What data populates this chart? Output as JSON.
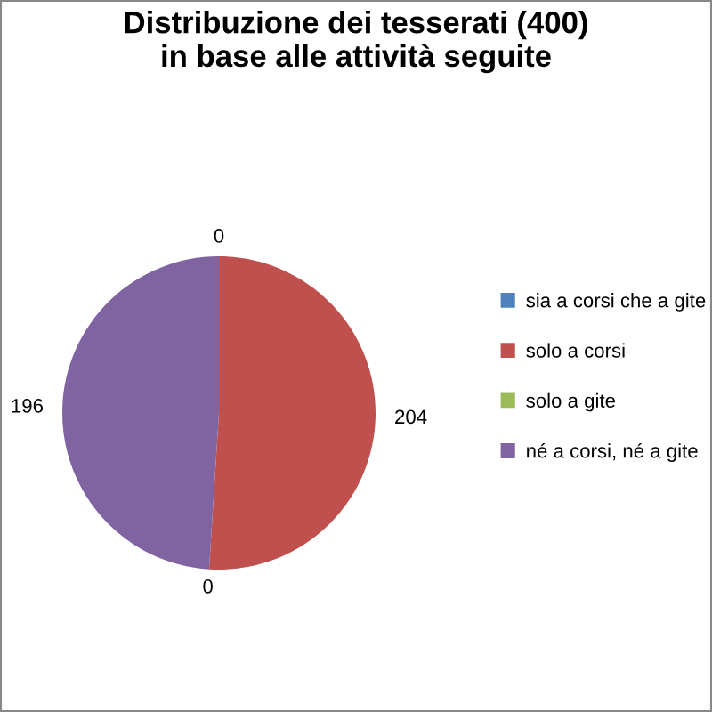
{
  "chart_data": {
    "type": "pie",
    "title": "Distribuzione dei tesserati (400)\nin base alle attività seguite",
    "categories": [
      "sia a corsi che a gite",
      "solo a corsi",
      "solo a gite",
      "né a corsi, né a gite"
    ],
    "values": [
      0,
      204,
      0,
      196
    ],
    "colors": [
      "#4f81bd",
      "#c0504d",
      "#9bbb59",
      "#8064a2"
    ],
    "value_labels": [
      "0",
      "204",
      "0",
      "196"
    ],
    "legend": "right"
  }
}
